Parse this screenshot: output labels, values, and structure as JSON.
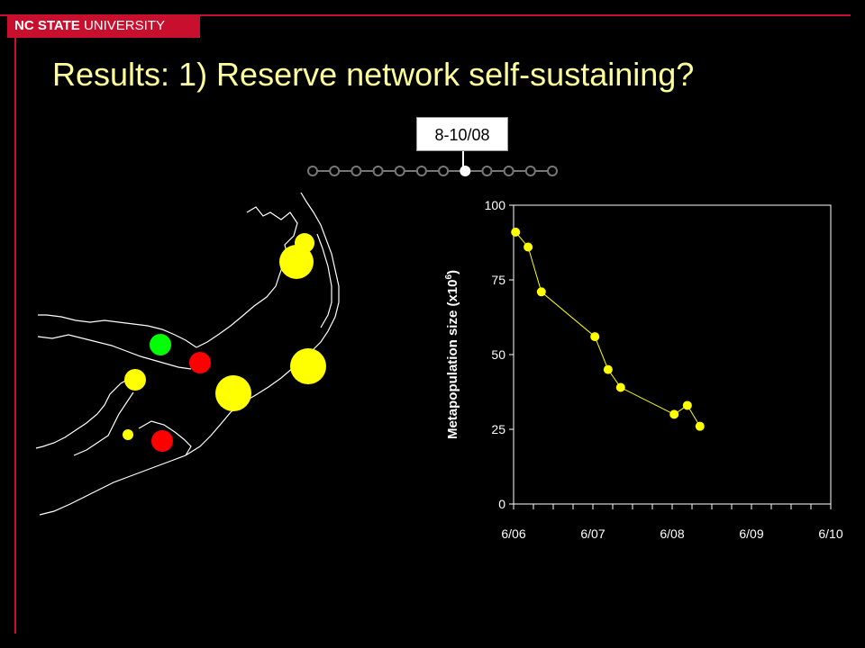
{
  "header": {
    "logo_bold": "NC STATE",
    "logo_thin": "UNIVERSITY",
    "title": "Results: 1) Reserve network self-sustaining?"
  },
  "timeline": {
    "label": "8-10/08",
    "count": 12,
    "selected_index": 7
  },
  "map": {
    "sites": [
      {
        "status": "yellow",
        "size": "small"
      },
      {
        "status": "yellow",
        "size": "large"
      },
      {
        "status": "green",
        "size": "medium"
      },
      {
        "status": "red",
        "size": "medium"
      },
      {
        "status": "yellow",
        "size": "medium"
      },
      {
        "status": "yellow",
        "size": "large"
      },
      {
        "status": "yellow",
        "size": "large"
      },
      {
        "status": "yellow",
        "size": "small"
      },
      {
        "status": "red",
        "size": "medium"
      }
    ],
    "colors": {
      "yellow": "#ffff00",
      "green": "#00ff00",
      "red": "#ff0000"
    }
  },
  "chart_data": {
    "type": "line",
    "ylabel_main": "Metapopulation size (x10",
    "ylabel_sup": "6",
    "ylabel_end": ")",
    "xlabel": "",
    "xlim": [
      0,
      48
    ],
    "ylim": [
      0,
      100
    ],
    "x_ticks": [
      {
        "value": 0,
        "label": "6/06"
      },
      {
        "value": 12,
        "label": "6/07"
      },
      {
        "value": 24,
        "label": "6/08"
      },
      {
        "value": 36,
        "label": "6/09"
      },
      {
        "value": 48,
        "label": "6/10"
      }
    ],
    "y_ticks": [
      {
        "value": 0,
        "label": "0"
      },
      {
        "value": 25,
        "label": "25"
      },
      {
        "value": 50,
        "label": "50"
      },
      {
        "value": 75,
        "label": "75"
      },
      {
        "value": 100,
        "label": "100"
      }
    ],
    "series": [
      {
        "points": [
          {
            "x": 0.3,
            "y": 91
          },
          {
            "x": 2.2,
            "y": 86
          },
          {
            "x": 4.2,
            "y": 71
          },
          {
            "x": 12.3,
            "y": 56
          },
          {
            "x": 14.3,
            "y": 45
          },
          {
            "x": 16.2,
            "y": 39
          },
          {
            "x": 24.3,
            "y": 30
          },
          {
            "x": 26.3,
            "y": 33
          },
          {
            "x": 28.2,
            "y": 26
          }
        ]
      }
    ],
    "colors": {
      "marker": "#ffff00",
      "line": "#ffff00",
      "axis": "#ffffff",
      "plot_bg": "#ffffff"
    }
  }
}
